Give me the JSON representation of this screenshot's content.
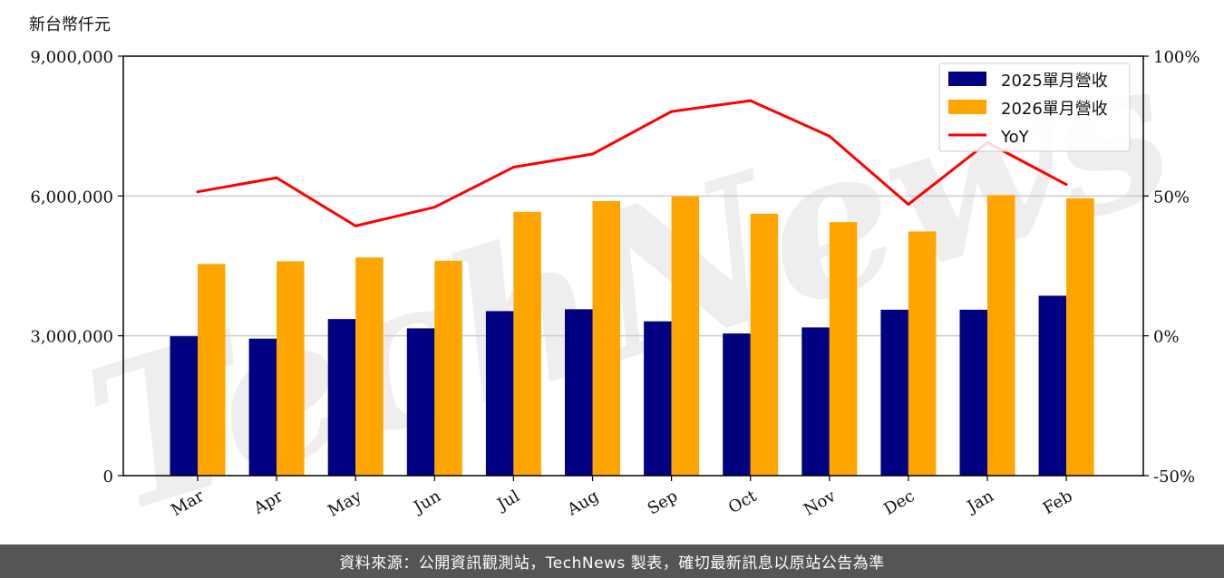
{
  "footer": {
    "source_text": "資料來源：公開資訊觀測站，TechNews 製表，確切最新訊息以原站公告為準"
  },
  "watermark": {
    "text": "TechNews"
  },
  "chart_data": {
    "type": "bar",
    "y_left_label": "新台幣仟元",
    "categories": [
      "Mar",
      "Apr",
      "May",
      "Jun",
      "Jul",
      "Aug",
      "Sep",
      "Oct",
      "Nov",
      "Dec",
      "Jan",
      "Feb"
    ],
    "series": [
      {
        "name": "2025單月營收",
        "type": "bar",
        "axis": "left",
        "color": "#000080",
        "values": [
          2990000,
          2940000,
          3360000,
          3160000,
          3530000,
          3570000,
          3310000,
          3050000,
          3180000,
          3560000,
          3560000,
          3860000
        ]
      },
      {
        "name": "2026單月營收",
        "type": "bar",
        "axis": "left",
        "color": "#FFA500",
        "values": [
          4540000,
          4600000,
          4680000,
          4610000,
          5660000,
          5890000,
          5990000,
          5620000,
          5440000,
          5240000,
          6020000,
          5950000
        ]
      },
      {
        "name": "YoY",
        "type": "line",
        "axis": "right",
        "color": "#FF0000",
        "values": [
          51.5,
          56.5,
          39.3,
          46.0,
          60.3,
          65.0,
          80.2,
          84.1,
          71.4,
          47.0,
          69.1,
          54.1
        ]
      }
    ],
    "y_left": {
      "ylim": [
        0,
        9000000
      ],
      "ticks": [
        0,
        3000000,
        6000000,
        9000000
      ],
      "tick_labels": [
        "0",
        "3,000,000",
        "6,000,000",
        "9,000,000"
      ]
    },
    "y_right": {
      "ylim": [
        -50,
        100
      ],
      "ticks": [
        -50,
        0,
        50,
        100
      ],
      "tick_labels": [
        "-50%",
        "0%",
        "50%",
        "100%"
      ]
    },
    "grid": "horizontal",
    "legend_position": "top-right"
  }
}
